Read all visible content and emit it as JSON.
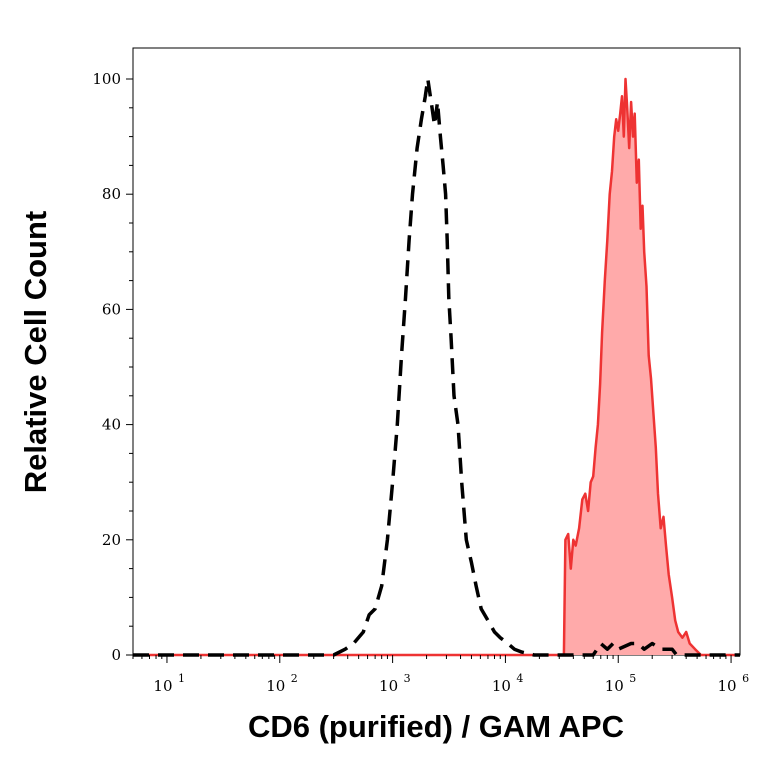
{
  "chart_data": {
    "type": "area",
    "xlabel": "CD6 (purified) / GAM APC",
    "ylabel": "Relative Cell Count",
    "xscale": "log",
    "xlim": [
      5,
      1200000.0
    ],
    "ylim": [
      0,
      100
    ],
    "x_ticks": [
      {
        "base": "10",
        "exp": "1",
        "value": 10
      },
      {
        "base": "10",
        "exp": "2",
        "value": 100
      },
      {
        "base": "10",
        "exp": "3",
        "value": 1000
      },
      {
        "base": "10",
        "exp": "4",
        "value": 10000
      },
      {
        "base": "10",
        "exp": "5",
        "value": 100000
      },
      {
        "base": "10",
        "exp": "6",
        "value": 1000000
      }
    ],
    "y_ticks": [
      "0",
      "20",
      "40",
      "60",
      "80",
      "100"
    ],
    "y_tick_values": [
      0,
      20,
      40,
      60,
      80,
      100
    ],
    "grid": false,
    "legend": "none",
    "colors": {
      "isotype": "#000000",
      "stained_line": "#ee3333",
      "stained_fill": "#ffaaaa"
    },
    "series": [
      {
        "style": "dashed-black",
        "points": [
          [
            5,
            0
          ],
          [
            300,
            0
          ],
          [
            380,
            1
          ],
          [
            450,
            2
          ],
          [
            550,
            4
          ],
          [
            620,
            7
          ],
          [
            700,
            8
          ],
          [
            800,
            12
          ],
          [
            900,
            20
          ],
          [
            1000,
            30
          ],
          [
            1100,
            40
          ],
          [
            1200,
            52
          ],
          [
            1300,
            62
          ],
          [
            1400,
            72
          ],
          [
            1500,
            80
          ],
          [
            1650,
            88
          ],
          [
            1800,
            93
          ],
          [
            1950,
            97
          ],
          [
            2050,
            100
          ],
          [
            2200,
            96
          ],
          [
            2350,
            92
          ],
          [
            2500,
            96
          ],
          [
            2650,
            90
          ],
          [
            2800,
            85
          ],
          [
            2950,
            80
          ],
          [
            3050,
            72
          ],
          [
            3150,
            62
          ],
          [
            3300,
            55
          ],
          [
            3500,
            45
          ],
          [
            3800,
            40
          ],
          [
            4100,
            30
          ],
          [
            4500,
            20
          ],
          [
            5000,
            16
          ],
          [
            5500,
            12
          ],
          [
            6100,
            8
          ],
          [
            7000,
            6
          ],
          [
            8000,
            4
          ],
          [
            9000,
            3
          ],
          [
            10500,
            2
          ],
          [
            12000,
            1
          ],
          [
            14000,
            0.5
          ],
          [
            18000,
            0
          ],
          [
            60000,
            0
          ],
          [
            65000,
            1
          ],
          [
            70000,
            2
          ],
          [
            80000,
            1
          ],
          [
            90000,
            2
          ],
          [
            100000,
            1
          ],
          [
            130000,
            2
          ],
          [
            150000,
            2
          ],
          [
            170000,
            1
          ],
          [
            200000,
            2
          ],
          [
            240000,
            1
          ],
          [
            300000,
            1
          ],
          [
            330000,
            0
          ],
          [
            1200000,
            0
          ]
        ]
      },
      {
        "style": "filled-red",
        "points": [
          [
            5,
            0
          ],
          [
            30000,
            0
          ],
          [
            33000,
            0
          ],
          [
            34000,
            20
          ],
          [
            36000,
            21
          ],
          [
            38000,
            15
          ],
          [
            40000,
            20
          ],
          [
            42000,
            19
          ],
          [
            45000,
            22
          ],
          [
            48000,
            27
          ],
          [
            51000,
            28
          ],
          [
            54000,
            25
          ],
          [
            57000,
            30
          ],
          [
            60000,
            31
          ],
          [
            63000,
            36
          ],
          [
            66000,
            40
          ],
          [
            69000,
            47
          ],
          [
            72000,
            56
          ],
          [
            76000,
            65
          ],
          [
            80000,
            72
          ],
          [
            84000,
            80
          ],
          [
            88000,
            84
          ],
          [
            92000,
            90
          ],
          [
            96000,
            93
          ],
          [
            100000,
            91
          ],
          [
            104000,
            94
          ],
          [
            108000,
            97
          ],
          [
            112000,
            90
          ],
          [
            116000,
            100
          ],
          [
            120000,
            95
          ],
          [
            125000,
            88
          ],
          [
            130000,
            96
          ],
          [
            135000,
            90
          ],
          [
            140000,
            94
          ],
          [
            146000,
            82
          ],
          [
            152000,
            86
          ],
          [
            158000,
            74
          ],
          [
            164000,
            78
          ],
          [
            170000,
            70
          ],
          [
            178000,
            64
          ],
          [
            186000,
            52
          ],
          [
            195000,
            48
          ],
          [
            205000,
            42
          ],
          [
            215000,
            36
          ],
          [
            225000,
            28
          ],
          [
            238000,
            22
          ],
          [
            252000,
            24
          ],
          [
            265000,
            19
          ],
          [
            280000,
            14
          ],
          [
            300000,
            10
          ],
          [
            320000,
            6
          ],
          [
            340000,
            4
          ],
          [
            370000,
            3
          ],
          [
            400000,
            4
          ],
          [
            430000,
            2
          ],
          [
            480000,
            1
          ],
          [
            540000,
            0
          ],
          [
            1200000,
            0
          ]
        ]
      }
    ]
  }
}
